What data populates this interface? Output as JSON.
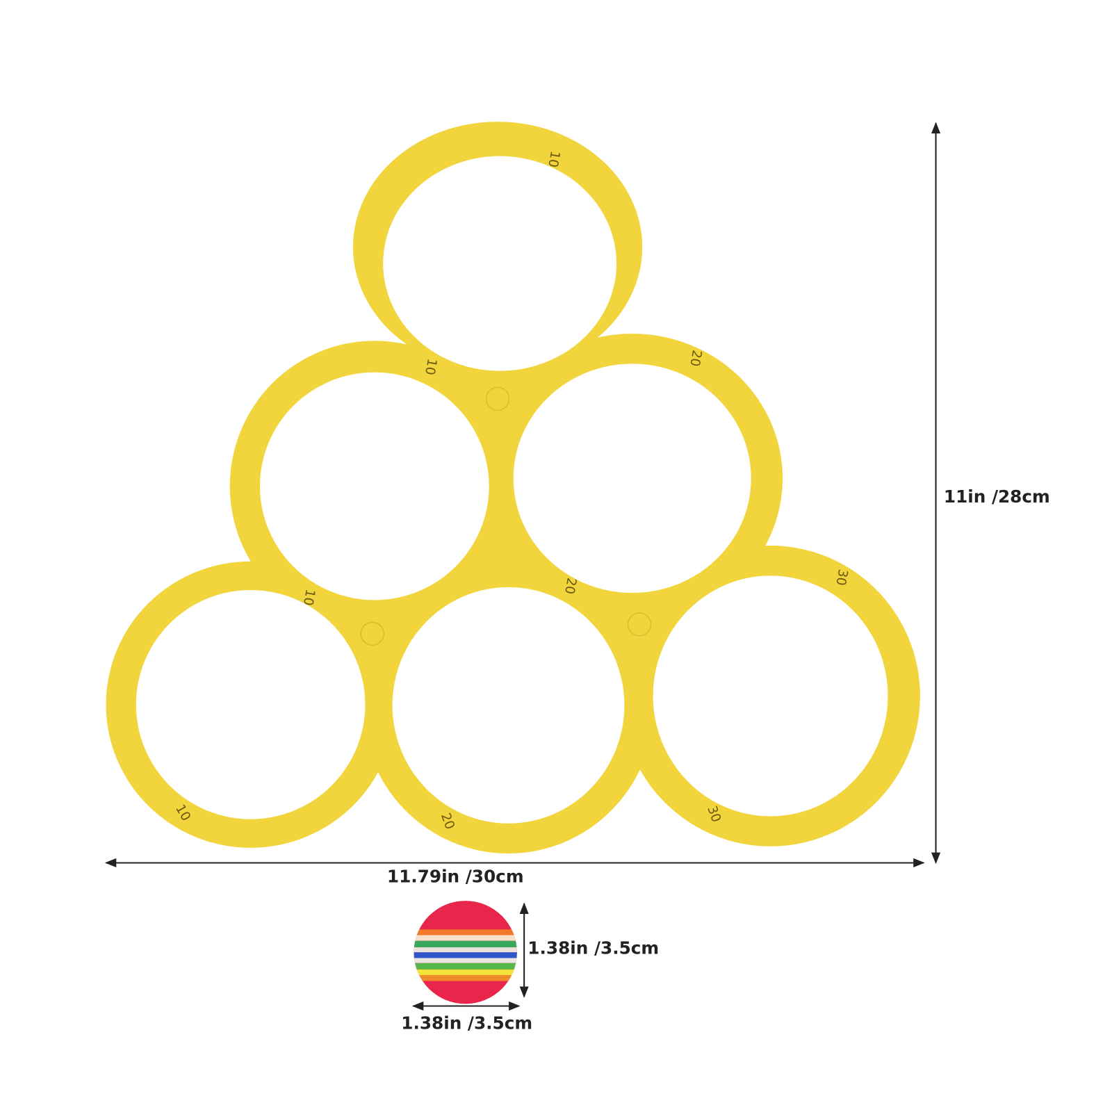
{
  "dimensions": {
    "height": "11in /28cm",
    "width": "11.79in /30cm",
    "ball_height": "1.38in /3.5cm",
    "ball_width": "1.38in /3.5cm"
  },
  "ring_labels": [
    "10",
    "10",
    "20",
    "10",
    "20",
    "30",
    "10",
    "20",
    "30"
  ]
}
